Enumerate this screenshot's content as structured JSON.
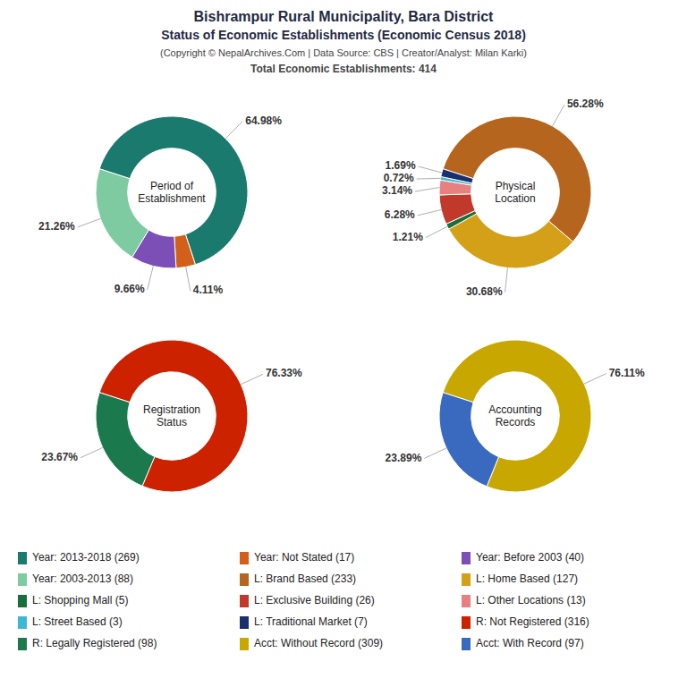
{
  "title": "Bishrampur Rural Municipality, Bara District",
  "subtitle": "Status of Economic Establishments (Economic Census 2018)",
  "annotations": [
    "(Copyright © NepalArchives.Com | Data Source: CBS | Creator/Analyst: Milan Karki)",
    "Total Economic Establishments: 414"
  ],
  "chart_data": [
    {
      "type": "pie",
      "title": "Period of\nEstablishment",
      "categories": [
        "Year: 2013-2018 (269)",
        "Year: Not Stated (17)",
        "Year: Before 2003 (40)",
        "Year: 2003-2013 (88)"
      ],
      "values": [
        64.98,
        4.11,
        9.66,
        21.26
      ],
      "value_labels": [
        "64.98%",
        "4.11%",
        "9.66%",
        "21.26%"
      ],
      "colors": [
        "#1a7a6e",
        "#d2601a",
        "#7b4fb5",
        "#7ecba1"
      ],
      "data_labels": true,
      "legend": "bottom"
    },
    {
      "type": "pie",
      "title": "Physical\nLocation",
      "categories": [
        "L: Brand Based (233)",
        "L: Home Based (127)",
        "L: Shopping Mall (5)",
        "L: Exclusive Building (26)",
        "L: Other Locations (13)",
        "L: Street Based (3)",
        "L: Traditional Market (7)"
      ],
      "values": [
        56.28,
        30.68,
        1.21,
        6.28,
        3.14,
        0.72,
        1.69
      ],
      "value_labels": [
        "56.28%",
        "30.68%",
        "1.21%",
        "6.28%",
        "3.14%",
        "0.72%",
        "1.69%"
      ],
      "colors": [
        "#b5651d",
        "#d4a017",
        "#1a6e3a",
        "#c0392b",
        "#e88080",
        "#3cb8d6",
        "#1a2f6e"
      ],
      "data_labels": true,
      "legend": "bottom"
    },
    {
      "type": "pie",
      "title": "Registration\nStatus",
      "categories": [
        "R: Not Registered (316)",
        "R: Legally Registered (98)"
      ],
      "values": [
        76.33,
        23.67
      ],
      "value_labels": [
        "76.33%",
        "23.67%"
      ],
      "colors": [
        "#cc2200",
        "#1a7a4e"
      ],
      "data_labels": true,
      "legend": "bottom"
    },
    {
      "type": "pie",
      "title": "Accounting\nRecords",
      "categories": [
        "Acct: Without Record (309)",
        "Acct: With Record (97)"
      ],
      "values": [
        76.11,
        23.89
      ],
      "value_labels": [
        "76.11%",
        "23.89%"
      ],
      "colors": [
        "#c8a800",
        "#3a6abf"
      ],
      "data_labels": true,
      "legend": "bottom"
    }
  ]
}
